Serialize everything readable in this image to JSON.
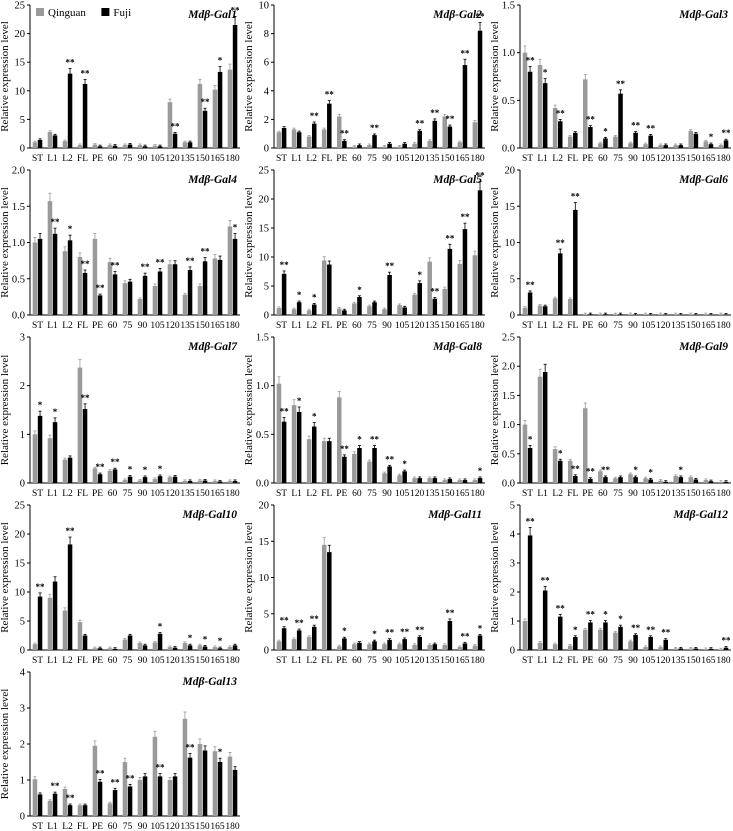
{
  "legend": [
    {
      "name": "Qinguan",
      "color": "#9a9a9a"
    },
    {
      "name": "Fuji",
      "color": "#000000"
    }
  ],
  "chart_data": [
    {
      "type": "bar",
      "title": "Mdβ-Gal1",
      "ylabel": "Relative expression level",
      "ylim": [
        0,
        25
      ],
      "yticks": [
        0,
        5,
        10,
        15,
        20,
        25
      ],
      "categories": [
        "ST",
        "L1",
        "L2",
        "FL",
        "PE",
        "60",
        "75",
        "90",
        "105",
        "120",
        "135",
        "150",
        "165",
        "180"
      ],
      "series": [
        {
          "name": "Qinguan",
          "values": [
            1.0,
            2.8,
            1.2,
            0.5,
            0.6,
            0.5,
            0.5,
            0.5,
            0.4,
            8.0,
            1.0,
            11.2,
            10.2,
            13.7
          ]
        },
        {
          "name": "Fuji",
          "values": [
            1.4,
            2.2,
            13.0,
            11.2,
            0.3,
            0.4,
            0.6,
            0.3,
            0.3,
            2.5,
            1.0,
            6.5,
            13.3,
            21.5
          ]
        }
      ],
      "sig": [
        "",
        "",
        "**",
        "**",
        "",
        "",
        "",
        "",
        "",
        "**",
        "",
        "**",
        "*",
        "**"
      ]
    },
    {
      "type": "bar",
      "title": "Mdβ-Gal2",
      "ylabel": "Relative expression level",
      "ylim": [
        0,
        10
      ],
      "yticks": [
        0,
        2,
        4,
        6,
        8,
        10
      ],
      "categories": [
        "ST",
        "L1",
        "L2",
        "FL",
        "PE",
        "60",
        "75",
        "90",
        "105",
        "120",
        "135",
        "150",
        "165",
        "180"
      ],
      "series": [
        {
          "name": "Qinguan",
          "values": [
            1.1,
            1.3,
            0.8,
            1.3,
            2.2,
            0.1,
            0.2,
            0.1,
            0.1,
            0.3,
            0.5,
            2.2,
            0.4,
            1.8
          ]
        },
        {
          "name": "Fuji",
          "values": [
            1.4,
            1.1,
            1.7,
            3.1,
            0.5,
            0.2,
            0.9,
            0.3,
            0.3,
            1.2,
            1.9,
            1.5,
            5.8,
            8.2
          ]
        }
      ],
      "sig": [
        "",
        "",
        "**",
        "**",
        "**",
        "",
        "**",
        "",
        "",
        "**",
        "**",
        "**",
        "**",
        "**"
      ]
    },
    {
      "type": "bar",
      "title": "Mdβ-Gal3",
      "ylabel": "Relative expression level",
      "ylim": [
        0,
        1.5
      ],
      "yticks": [
        0,
        0.5,
        1.0,
        1.5
      ],
      "categories": [
        "ST",
        "L1",
        "L2",
        "FL",
        "PE",
        "60",
        "75",
        "90",
        "105",
        "120",
        "135",
        "150",
        "165",
        "180"
      ],
      "series": [
        {
          "name": "Qinguan",
          "values": [
            1.0,
            0.87,
            0.42,
            0.12,
            0.72,
            0.05,
            0.12,
            0.05,
            0.04,
            0.03,
            0.03,
            0.18,
            0.07,
            0.03
          ]
        },
        {
          "name": "Fuji",
          "values": [
            0.8,
            0.68,
            0.28,
            0.16,
            0.22,
            0.1,
            0.57,
            0.16,
            0.13,
            0.03,
            0.03,
            0.15,
            0.04,
            0.08
          ]
        }
      ],
      "sig": [
        "**",
        "*",
        "**",
        "",
        "**",
        "*",
        "**",
        "**",
        "**",
        "",
        "",
        "",
        "*",
        "**"
      ]
    },
    {
      "type": "bar",
      "title": "Mdβ-Gal4",
      "ylabel": "Relative expression level",
      "ylim": [
        0,
        2.0
      ],
      "yticks": [
        0,
        0.5,
        1.0,
        1.5,
        2.0
      ],
      "categories": [
        "ST",
        "L1",
        "L2",
        "FL",
        "PE",
        "60",
        "75",
        "90",
        "105",
        "120",
        "135",
        "150",
        "165",
        "180"
      ],
      "series": [
        {
          "name": "Qinguan",
          "values": [
            1.0,
            1.57,
            0.88,
            0.8,
            1.05,
            0.73,
            0.44,
            0.22,
            0.4,
            0.7,
            0.28,
            0.4,
            0.78,
            1.22
          ]
        },
        {
          "name": "Fuji",
          "values": [
            1.05,
            1.12,
            1.03,
            0.58,
            0.27,
            0.56,
            0.46,
            0.54,
            0.6,
            0.7,
            0.62,
            0.74,
            0.76,
            1.05
          ]
        }
      ],
      "sig": [
        "",
        "**",
        "*",
        "**",
        "**",
        "**",
        "",
        "**",
        "**",
        "",
        "**",
        "**",
        "",
        "*"
      ]
    },
    {
      "type": "bar",
      "title": "Mdβ-Gal5",
      "ylabel": "Relative expression level",
      "ylim": [
        0,
        25
      ],
      "yticks": [
        0,
        5,
        10,
        15,
        20,
        25
      ],
      "categories": [
        "ST",
        "L1",
        "L2",
        "FL",
        "PE",
        "60",
        "75",
        "90",
        "105",
        "120",
        "135",
        "150",
        "165",
        "180"
      ],
      "series": [
        {
          "name": "Qinguan",
          "values": [
            1.2,
            1.0,
            0.8,
            9.4,
            1.1,
            2.0,
            1.5,
            1.0,
            1.7,
            3.5,
            9.2,
            4.5,
            8.8,
            10.3
          ]
        },
        {
          "name": "Fuji",
          "values": [
            7.1,
            2.2,
            1.8,
            8.7,
            0.8,
            3.1,
            2.2,
            6.9,
            1.3,
            5.5,
            2.8,
            11.4,
            14.8,
            21.5
          ]
        }
      ],
      "sig": [
        "**",
        "*",
        "*",
        "",
        "",
        "*",
        "",
        "**",
        "",
        "*",
        "**",
        "**",
        "**",
        "**"
      ]
    },
    {
      "type": "bar",
      "title": "Mdβ-Gal6",
      "ylabel": "Relative expression level",
      "ylim": [
        0,
        20
      ],
      "yticks": [
        0,
        5,
        10,
        15,
        20
      ],
      "categories": [
        "ST",
        "L1",
        "L2",
        "FL",
        "PE",
        "60",
        "75",
        "90",
        "105",
        "120",
        "135",
        "150",
        "165",
        "180"
      ],
      "series": [
        {
          "name": "Qinguan",
          "values": [
            1.0,
            1.3,
            2.3,
            2.2,
            0.1,
            0.1,
            0.1,
            0.1,
            0.1,
            0.1,
            0.1,
            0.1,
            0.1,
            0.1
          ]
        },
        {
          "name": "Fuji",
          "values": [
            3.1,
            1.2,
            8.5,
            14.5,
            0.1,
            0.1,
            0.1,
            0.05,
            0.05,
            0.05,
            0.05,
            0.05,
            0.05,
            0.05
          ]
        }
      ],
      "sig": [
        "**",
        "",
        "**",
        "**",
        "",
        "",
        "",
        "",
        "",
        "",
        "",
        "",
        "",
        ""
      ]
    },
    {
      "type": "bar",
      "title": "Mdβ-Gal7",
      "ylabel": "Relative expression level",
      "ylim": [
        0,
        3
      ],
      "yticks": [
        0,
        1,
        2,
        3
      ],
      "categories": [
        "ST",
        "L1",
        "L2",
        "FL",
        "PE",
        "60",
        "75",
        "90",
        "105",
        "120",
        "135",
        "150",
        "165",
        "180"
      ],
      "series": [
        {
          "name": "Qinguan",
          "values": [
            1.0,
            0.92,
            0.48,
            2.37,
            0.3,
            0.25,
            0.06,
            0.05,
            0.08,
            0.12,
            0.04,
            0.05,
            0.04,
            0.04
          ]
        },
        {
          "name": "Fuji",
          "values": [
            1.38,
            1.25,
            0.52,
            1.52,
            0.18,
            0.28,
            0.13,
            0.12,
            0.14,
            0.13,
            0.04,
            0.05,
            0.03,
            0.04
          ]
        }
      ],
      "sig": [
        "*",
        "*",
        "",
        "**",
        "**",
        "**",
        "*",
        "*",
        "*",
        "",
        "",
        "",
        "",
        ""
      ]
    },
    {
      "type": "bar",
      "title": "Mdβ-Gal8",
      "ylabel": "Relative expression level",
      "ylim": [
        0,
        1.5
      ],
      "yticks": [
        0,
        0.5,
        1.0,
        1.5
      ],
      "categories": [
        "ST",
        "L1",
        "L2",
        "FL",
        "PE",
        "60",
        "75",
        "90",
        "105",
        "120",
        "135",
        "150",
        "165",
        "180"
      ],
      "series": [
        {
          "name": "Qinguan",
          "values": [
            1.02,
            0.8,
            0.45,
            0.43,
            0.88,
            0.3,
            0.22,
            0.1,
            0.08,
            0.05,
            0.05,
            0.03,
            0.03,
            0.03
          ]
        },
        {
          "name": "Fuji",
          "values": [
            0.63,
            0.73,
            0.58,
            0.43,
            0.27,
            0.36,
            0.36,
            0.17,
            0.12,
            0.05,
            0.05,
            0.04,
            0.03,
            0.05
          ]
        }
      ],
      "sig": [
        "**",
        "*",
        "*",
        "",
        "**",
        "*",
        "**",
        "**",
        "*",
        "",
        "",
        "",
        "",
        "*"
      ]
    },
    {
      "type": "bar",
      "title": "Mdβ-Gal9",
      "ylabel": "Relative expression level",
      "ylim": [
        0,
        2.5
      ],
      "yticks": [
        0,
        0.5,
        1.0,
        1.5,
        2.0,
        2.5
      ],
      "categories": [
        "ST",
        "L1",
        "L2",
        "FL",
        "PE",
        "60",
        "75",
        "90",
        "105",
        "120",
        "135",
        "150",
        "165",
        "180"
      ],
      "series": [
        {
          "name": "Qinguan",
          "values": [
            1.0,
            1.82,
            0.58,
            0.38,
            1.28,
            0.2,
            0.08,
            0.15,
            0.08,
            0.04,
            0.12,
            0.1,
            0.05,
            0.02
          ]
        },
        {
          "name": "Fuji",
          "values": [
            0.6,
            1.9,
            0.38,
            0.12,
            0.07,
            0.1,
            0.1,
            0.1,
            0.06,
            0.02,
            0.1,
            0.06,
            0.03,
            0.02
          ]
        }
      ],
      "sig": [
        "*",
        "",
        "*",
        "**",
        "**",
        "**",
        "",
        "*",
        "*",
        "",
        "*",
        "",
        "",
        ""
      ]
    },
    {
      "type": "bar",
      "title": "Mdβ-Gal10",
      "ylabel": "Relative expression level",
      "ylim": [
        0,
        25
      ],
      "yticks": [
        0,
        5,
        10,
        15,
        20,
        25
      ],
      "categories": [
        "ST",
        "L1",
        "L2",
        "FL",
        "PE",
        "60",
        "75",
        "90",
        "105",
        "120",
        "135",
        "150",
        "165",
        "180"
      ],
      "series": [
        {
          "name": "Qinguan",
          "values": [
            1.0,
            9.0,
            6.8,
            4.8,
            0.3,
            0.3,
            1.8,
            1.2,
            1.3,
            0.5,
            1.2,
            0.8,
            0.5,
            0.5
          ]
        },
        {
          "name": "Fuji",
          "values": [
            9.2,
            11.8,
            18.2,
            2.5,
            0.3,
            0.2,
            2.5,
            0.8,
            2.8,
            0.4,
            0.8,
            0.6,
            0.3,
            0.8
          ]
        }
      ],
      "sig": [
        "**",
        "",
        "**",
        "",
        "",
        "",
        "",
        "",
        "*",
        "",
        "*",
        "*",
        "*",
        ""
      ]
    },
    {
      "type": "bar",
      "title": "Mdβ-Gal11",
      "ylabel": "Relative expression level",
      "ylim": [
        0,
        20
      ],
      "yticks": [
        0,
        5,
        10,
        15,
        20
      ],
      "categories": [
        "ST",
        "L1",
        "L2",
        "FL",
        "PE",
        "60",
        "75",
        "90",
        "105",
        "120",
        "135",
        "150",
        "165",
        "180"
      ],
      "series": [
        {
          "name": "Qinguan",
          "values": [
            1.2,
            1.5,
            1.8,
            14.5,
            0.5,
            0.8,
            0.8,
            0.8,
            0.8,
            0.7,
            0.7,
            0.7,
            0.4,
            0.6
          ]
        },
        {
          "name": "Fuji",
          "values": [
            3.0,
            2.7,
            3.2,
            13.5,
            1.6,
            1.0,
            1.2,
            1.4,
            1.5,
            1.8,
            0.8,
            4.0,
            0.9,
            2.0
          ]
        }
      ],
      "sig": [
        "**",
        "**",
        "**",
        "",
        "*",
        "",
        "*",
        "**",
        "**",
        "**",
        "",
        "**",
        "**",
        "*"
      ]
    },
    {
      "type": "bar",
      "title": "Mdβ-Gal12",
      "ylabel": "Relative expression level",
      "ylim": [
        0,
        5
      ],
      "yticks": [
        0,
        1,
        2,
        3,
        4,
        5
      ],
      "categories": [
        "ST",
        "L1",
        "L2",
        "FL",
        "PE",
        "60",
        "75",
        "90",
        "105",
        "120",
        "135",
        "150",
        "165",
        "180"
      ],
      "series": [
        {
          "name": "Qinguan",
          "values": [
            1.0,
            0.25,
            0.2,
            0.15,
            0.7,
            0.7,
            0.6,
            0.3,
            0.1,
            0.1,
            0.05,
            0.05,
            0.03,
            0.02
          ]
        },
        {
          "name": "Fuji",
          "values": [
            3.95,
            2.05,
            1.15,
            0.45,
            0.95,
            0.95,
            0.8,
            0.52,
            0.45,
            0.35,
            0.05,
            0.05,
            0.04,
            0.08
          ]
        }
      ],
      "sig": [
        "**",
        "**",
        "**",
        "*",
        "**",
        "*",
        "*",
        "**",
        "**",
        "**",
        "",
        "",
        "",
        "**"
      ]
    },
    {
      "type": "bar",
      "title": "Mdβ-Gal13",
      "ylabel": "Relative expression level",
      "ylim": [
        0,
        4
      ],
      "yticks": [
        0,
        1,
        2,
        3,
        4
      ],
      "categories": [
        "ST",
        "L1",
        "L2",
        "FL",
        "PE",
        "60",
        "75",
        "90",
        "105",
        "120",
        "135",
        "150",
        "165",
        "180"
      ],
      "series": [
        {
          "name": "Qinguan",
          "values": [
            1.02,
            0.42,
            0.75,
            0.3,
            1.95,
            0.35,
            1.5,
            1.0,
            2.2,
            1.0,
            2.7,
            2.0,
            1.8,
            1.65
          ]
        },
        {
          "name": "Fuji",
          "values": [
            0.6,
            0.62,
            0.3,
            0.3,
            0.95,
            0.72,
            0.82,
            1.1,
            1.1,
            1.1,
            1.62,
            1.82,
            1.5,
            1.28
          ]
        }
      ],
      "sig": [
        "",
        "**",
        "**",
        "",
        "**",
        "**",
        "**",
        "",
        "**",
        "",
        "**",
        "",
        "*",
        ""
      ]
    }
  ]
}
